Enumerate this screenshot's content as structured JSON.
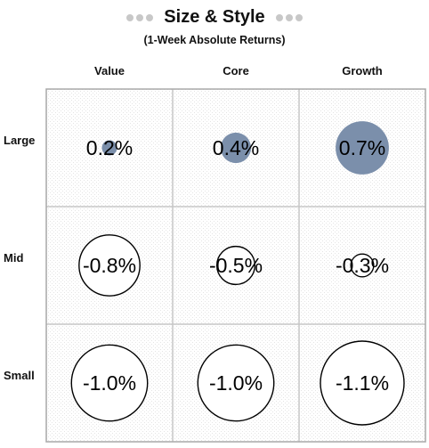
{
  "chart_data": {
    "type": "bubble-grid",
    "title": "Size & Style",
    "subtitle": "(1-Week Absolute Returns)",
    "columns": [
      "Value",
      "Core",
      "Growth"
    ],
    "rows": [
      "Large",
      "Mid",
      "Small"
    ],
    "cells": [
      [
        {
          "value": 0.2,
          "label": "0.2%"
        },
        {
          "value": 0.4,
          "label": "0.4%"
        },
        {
          "value": 0.7,
          "label": "0.7%"
        }
      ],
      [
        {
          "value": -0.8,
          "label": "-0.8%"
        },
        {
          "value": -0.5,
          "label": "-0.5%"
        },
        {
          "value": -0.3,
          "label": "-0.3%"
        }
      ],
      [
        {
          "value": -1.0,
          "label": "-1.0%"
        },
        {
          "value": -1.0,
          "label": "-1.0%"
        },
        {
          "value": -1.1,
          "label": "-1.1%"
        }
      ]
    ],
    "colors": {
      "positive_fill": "#7b8fab",
      "negative_fill": "#ffffff",
      "negative_stroke": "#000000",
      "grid_line": "#c7c7c7",
      "title_dots": "#c8c8c8"
    }
  }
}
